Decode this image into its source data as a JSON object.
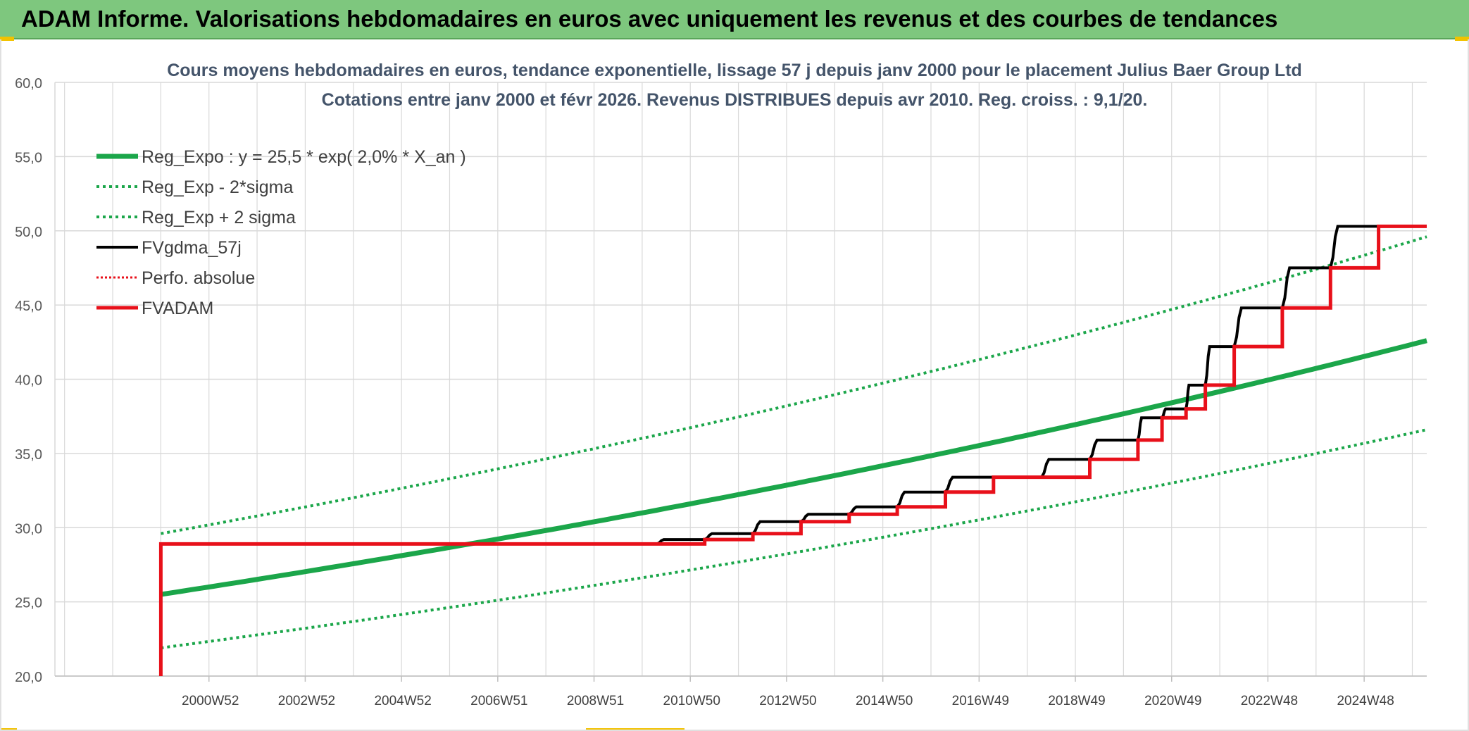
{
  "banner": {
    "title": "ADAM Informe. Valorisations hebdomadaires en euros avec uniquement les revenus et des courbes de tendances"
  },
  "colors": {
    "banner_bg": "#7ec77e",
    "green": "#1ba64a",
    "red": "#e8101a",
    "black": "#000000",
    "grid": "#d9d9d9"
  },
  "chart_data": {
    "type": "line",
    "title_line1": "Cours moyens hebdomadaires en euros, tendance exponentielle, lissage 57 j depuis janv 2000 pour le placement Julius Baer Group Ltd",
    "title_line2": "Cotations entre janv 2000 et févr 2026. Revenus DISTRIBUES depuis avr 2010. Reg. croiss. : 9,1/20.",
    "ylim": [
      20,
      60
    ],
    "y_ticks": [
      "20,0",
      "25,0",
      "30,0",
      "35,0",
      "40,0",
      "45,0",
      "50,0",
      "55,0",
      "60,0"
    ],
    "x_range": [
      1997.8,
      2026.3
    ],
    "x_ticks": [
      {
        "label": "2000W52",
        "x": 2001.0
      },
      {
        "label": "2002W52",
        "x": 2003.0
      },
      {
        "label": "2004W52",
        "x": 2005.0
      },
      {
        "label": "2006W51",
        "x": 2007.0
      },
      {
        "label": "2008W51",
        "x": 2009.0
      },
      {
        "label": "2010W50",
        "x": 2011.0
      },
      {
        "label": "2012W50",
        "x": 2013.0
      },
      {
        "label": "2014W50",
        "x": 2015.0
      },
      {
        "label": "2016W49",
        "x": 2017.0
      },
      {
        "label": "2018W49",
        "x": 2019.0
      },
      {
        "label": "2020W49",
        "x": 2021.0
      },
      {
        "label": "2022W48",
        "x": 2023.0
      },
      {
        "label": "2024W48",
        "x": 2025.0
      }
    ],
    "grid": true,
    "legend_position": "top-left",
    "series": [
      {
        "name": "Reg_Expo : y = 25,5 * exp( 2,0% *  X_an )",
        "style": "solid-thick",
        "color": "#1ba64a",
        "x": [
          2000.0,
          2026.3
        ],
        "y": [
          25.5,
          42.6
        ]
      },
      {
        "name": "Reg_Exp - 2*sigma",
        "style": "dotted",
        "color": "#1ba64a",
        "x": [
          2000.0,
          2026.3
        ],
        "y": [
          21.9,
          36.6
        ]
      },
      {
        "name": "Reg_Exp + 2 sigma",
        "style": "dotted",
        "color": "#1ba64a",
        "x": [
          2000.0,
          2026.3
        ],
        "y": [
          29.6,
          49.6
        ]
      },
      {
        "name": "FVgdma_57j",
        "style": "solid",
        "color": "#000000",
        "x": [
          2000.0,
          2010.3,
          2011.3,
          2012.3,
          2013.3,
          2014.3,
          2015.3,
          2016.3,
          2017.3,
          2018.3,
          2019.3,
          2020.3,
          2020.8,
          2021.3,
          2021.7,
          2022.3,
          2023.3,
          2024.3,
          2025.3,
          2026.3
        ],
        "y": [
          28.9,
          28.9,
          29.2,
          29.6,
          30.4,
          30.9,
          31.4,
          32.4,
          33.4,
          33.4,
          34.6,
          35.9,
          37.4,
          38.0,
          39.6,
          42.2,
          44.8,
          47.5,
          50.3,
          50.3
        ]
      },
      {
        "name": "Perfo. absolue",
        "style": "dotted",
        "color": "#e8101a",
        "x": [],
        "y": []
      },
      {
        "name": "FVADAM",
        "style": "solid-thick-step",
        "color": "#e8101a",
        "x": [
          2000.0,
          2000.0,
          2010.3,
          2011.3,
          2012.3,
          2013.3,
          2014.3,
          2015.3,
          2016.3,
          2017.3,
          2018.3,
          2019.3,
          2020.3,
          2020.8,
          2021.3,
          2021.7,
          2022.3,
          2023.3,
          2024.3,
          2025.3,
          2026.3
        ],
        "y": [
          20.0,
          28.9,
          28.9,
          29.2,
          29.6,
          30.4,
          30.9,
          31.4,
          32.4,
          33.4,
          33.4,
          34.6,
          35.9,
          37.4,
          38.0,
          39.6,
          42.2,
          44.8,
          47.5,
          50.3,
          50.3
        ]
      }
    ]
  }
}
